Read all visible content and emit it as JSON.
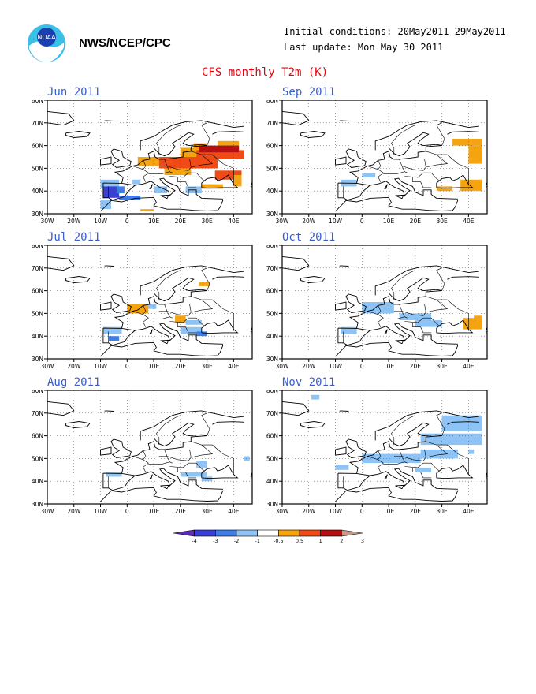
{
  "header": {
    "org": "NWS/NCEP/CPC",
    "initial_conditions": "Initial conditions: 20May2011–29May2011",
    "last_update": "Last update: Mon May 30 2011",
    "title": "CFS monthly T2m (K)"
  },
  "axes": {
    "lat_labels": [
      "80N",
      "70N",
      "60N",
      "50N",
      "40N",
      "30N"
    ],
    "lon_labels": [
      "30W",
      "20W",
      "10W",
      "0",
      "10E",
      "20E",
      "30E",
      "40E"
    ]
  },
  "colors": {
    "-4": "#5c2bb5",
    "-3": "#3a3fd6",
    "-2": "#3f7ee8",
    "-1": "#8ec4f5",
    "1": "#f5a30e",
    "2": "#f04a16",
    "3": "#b51010",
    "4": "#c49a88"
  },
  "panels": [
    {
      "id": "jun",
      "title": "Jun 2011",
      "cells": [
        [
          25,
          57,
          5,
          4,
          "1"
        ],
        [
          34,
          58,
          8,
          4,
          "1"
        ],
        [
          20,
          55,
          6,
          4,
          "1"
        ],
        [
          26,
          54,
          18,
          4,
          "2"
        ],
        [
          27,
          57,
          15,
          3,
          "3"
        ],
        [
          4,
          51,
          8,
          4,
          "1"
        ],
        [
          12,
          50,
          22,
          5,
          "2"
        ],
        [
          14,
          47,
          10,
          3,
          "1"
        ],
        [
          33,
          45,
          10,
          4,
          "2"
        ],
        [
          40,
          42,
          3,
          5,
          "1"
        ],
        [
          -10,
          41,
          7,
          4,
          "-1"
        ],
        [
          -9,
          37,
          6,
          5,
          "-3"
        ],
        [
          -4,
          39,
          3,
          3,
          "-2"
        ],
        [
          -3,
          36,
          8,
          2,
          "-2"
        ],
        [
          -10,
          32,
          4,
          4,
          "-1"
        ],
        [
          2,
          43,
          3,
          2,
          "-1"
        ],
        [
          10,
          39,
          5,
          3,
          "-1"
        ],
        [
          22,
          39,
          6,
          3,
          "-1"
        ],
        [
          28,
          41,
          8,
          2,
          "1"
        ],
        [
          5,
          31,
          5,
          1,
          "1"
        ]
      ]
    },
    {
      "id": "jul",
      "title": "Jul 2011",
      "cells": [
        [
          27,
          62,
          4,
          2,
          "1"
        ],
        [
          0,
          50,
          8,
          4,
          "1"
        ],
        [
          8,
          52,
          3,
          2,
          "-1"
        ],
        [
          18,
          46,
          4,
          3,
          "1"
        ],
        [
          -9,
          41,
          7,
          3,
          "-1"
        ],
        [
          -7,
          38,
          4,
          2,
          "-2"
        ],
        [
          22,
          45,
          6,
          2,
          "-1"
        ],
        [
          20,
          41,
          8,
          3,
          "-1"
        ],
        [
          26,
          40,
          4,
          2,
          "-2"
        ]
      ]
    },
    {
      "id": "aug",
      "title": "Aug 2011",
      "cells": [
        [
          -8,
          42,
          6,
          2,
          "-1"
        ],
        [
          26,
          46,
          4,
          3,
          "-1"
        ],
        [
          20,
          42,
          10,
          2,
          "-1"
        ],
        [
          28,
          40,
          4,
          2,
          "-1"
        ],
        [
          44,
          49,
          2,
          2,
          "-1"
        ]
      ]
    },
    {
      "id": "sep",
      "title": "Sep 2011",
      "cells": [
        [
          34,
          60,
          11,
          3,
          "1"
        ],
        [
          40,
          52,
          5,
          8,
          "1"
        ],
        [
          37,
          40,
          8,
          5,
          "1"
        ],
        [
          28,
          40,
          6,
          2,
          "1"
        ],
        [
          -8,
          42,
          6,
          3,
          "-1"
        ],
        [
          0,
          46,
          5,
          2,
          "-1"
        ]
      ]
    },
    {
      "id": "oct",
      "title": "Oct 2011",
      "cells": [
        [
          0,
          50,
          12,
          5,
          "-1"
        ],
        [
          14,
          47,
          12,
          3,
          "-1"
        ],
        [
          -8,
          41,
          6,
          3,
          "-1"
        ],
        [
          20,
          44,
          10,
          3,
          "-1"
        ],
        [
          38,
          43,
          7,
          5,
          "1"
        ],
        [
          42,
          46,
          3,
          3,
          "1"
        ]
      ]
    },
    {
      "id": "nov",
      "title": "Nov 2011",
      "cells": [
        [
          30,
          62,
          15,
          7,
          "-1"
        ],
        [
          22,
          56,
          23,
          5,
          "-1"
        ],
        [
          22,
          50,
          14,
          4,
          "-1"
        ],
        [
          0,
          48,
          22,
          4,
          "-1"
        ],
        [
          -10,
          45,
          5,
          2,
          "-1"
        ],
        [
          20,
          44,
          6,
          2,
          "-1"
        ],
        [
          -19,
          76,
          3,
          2,
          "-1"
        ],
        [
          40,
          52,
          2,
          2,
          "-1"
        ]
      ]
    }
  ],
  "colorbar": {
    "bins": [
      {
        "key": "-4"
      },
      {
        "key": "-3"
      },
      {
        "key": "-2"
      },
      {
        "key": "-1"
      },
      {
        "key": "white"
      },
      {
        "key": "1"
      },
      {
        "key": "2"
      },
      {
        "key": "3"
      },
      {
        "key": "4"
      }
    ],
    "labels": [
      "-4",
      "-3",
      "-2",
      "-1",
      "-0.5",
      "0.5",
      "1",
      "2",
      "3",
      "4"
    ]
  }
}
